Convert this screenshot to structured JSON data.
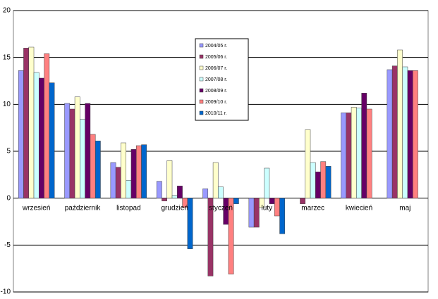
{
  "chart_data": {
    "type": "bar",
    "categories": [
      "wrzesień",
      "październik",
      "listopad",
      "grudzień",
      "styczeń",
      "luty",
      "marzec",
      "kwiecień",
      "maj"
    ],
    "series": [
      {
        "name": "2004/05 r.",
        "color": "#9999ff",
        "values": [
          13.6,
          10.1,
          3.8,
          1.8,
          1.0,
          -3.1,
          null,
          9.1,
          13.7
        ]
      },
      {
        "name": "2005/06 r.",
        "color": "#993366",
        "values": [
          16.0,
          9.5,
          3.3,
          -0.3,
          -8.3,
          -3.1,
          -0.6,
          9.1,
          14.1
        ]
      },
      {
        "name": "2006/07 r.",
        "color": "#ffffcc",
        "values": [
          16.1,
          10.8,
          5.9,
          4.0,
          3.8,
          -1.0,
          7.3,
          9.7,
          15.8
        ]
      },
      {
        "name": "2007/08 r.",
        "color": "#ccffff",
        "values": [
          13.4,
          8.4,
          1.9,
          0.3,
          1.2,
          3.2,
          3.8,
          9.6,
          14.0
        ]
      },
      {
        "name": "2008/09 r.",
        "color": "#660066",
        "values": [
          12.8,
          10.1,
          5.2,
          1.3,
          -2.8,
          -0.6,
          2.8,
          11.2,
          13.6
        ]
      },
      {
        "name": "2009/10 r.",
        "color": "#ff8080",
        "values": [
          15.4,
          6.8,
          5.6,
          -1.0,
          -8.1,
          -1.9,
          3.9,
          9.5,
          13.6
        ]
      },
      {
        "name": "2010/11 r.",
        "color": "#0066cc",
        "values": [
          12.3,
          6.1,
          5.7,
          -5.4,
          -0.6,
          -3.8,
          3.4,
          null,
          null
        ]
      }
    ],
    "ylim": [
      -10,
      20
    ],
    "yticks": [
      -10,
      -5,
      0,
      5,
      10,
      15,
      20
    ],
    "grid": true
  }
}
